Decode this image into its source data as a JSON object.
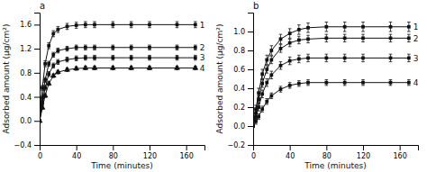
{
  "chart_data": [
    {
      "type": "line",
      "title": "a",
      "x_label": "Time (minutes)",
      "y_label": "Adsorbed amount (μg/cm²)",
      "x": [
        0,
        3,
        6,
        10,
        15,
        20,
        30,
        40,
        50,
        60,
        80,
        100,
        120,
        150,
        170
      ],
      "xlim": [
        0,
        180
      ],
      "xticks": [
        0,
        40,
        80,
        120,
        160
      ],
      "ylim": [
        -0.4,
        1.8
      ],
      "yticks": [
        {
          "value": -0.4,
          "label": "−0.4"
        },
        {
          "value": 0.0,
          "label": "0.0"
        },
        0.4,
        0.8,
        1.2,
        1.6
      ],
      "series": [
        {
          "name": "1",
          "color": "#111111",
          "marker": "square",
          "values": [
            0.0,
            0.55,
            0.95,
            1.25,
            1.45,
            1.52,
            1.57,
            1.59,
            1.6,
            1.6,
            1.6,
            1.6,
            1.6,
            1.6,
            1.6
          ],
          "errors": [
            0.01,
            0.04,
            0.05,
            0.05,
            0.05,
            0.05,
            0.05,
            0.05,
            0.05,
            0.05,
            0.05,
            0.05,
            0.05,
            0.05,
            0.05
          ]
        },
        {
          "name": "2",
          "color": "#111111",
          "marker": "square",
          "values": [
            0.0,
            0.38,
            0.68,
            0.95,
            1.1,
            1.17,
            1.2,
            1.22,
            1.22,
            1.22,
            1.22,
            1.22,
            1.22,
            1.22,
            1.22
          ],
          "errors": [
            0.01,
            0.04,
            0.04,
            0.04,
            0.04,
            0.04,
            0.04,
            0.04,
            0.04,
            0.04,
            0.04,
            0.04,
            0.04,
            0.04,
            0.04
          ]
        },
        {
          "name": "3",
          "color": "#111111",
          "marker": "square",
          "values": [
            0.0,
            0.3,
            0.55,
            0.78,
            0.92,
            0.98,
            1.02,
            1.04,
            1.05,
            1.05,
            1.05,
            1.05,
            1.05,
            1.05,
            1.05
          ],
          "errors": [
            0.01,
            0.03,
            0.04,
            0.04,
            0.04,
            0.04,
            0.04,
            0.04,
            0.04,
            0.04,
            0.04,
            0.04,
            0.04,
            0.04,
            0.04
          ]
        },
        {
          "name": "4",
          "color": "#111111",
          "marker": "triangle",
          "values": [
            0.0,
            0.22,
            0.42,
            0.62,
            0.75,
            0.81,
            0.85,
            0.87,
            0.88,
            0.88,
            0.88,
            0.88,
            0.88,
            0.88,
            0.88
          ],
          "errors": [
            0.01,
            0.03,
            0.03,
            0.03,
            0.03,
            0.03,
            0.03,
            0.03,
            0.03,
            0.03,
            0.03,
            0.03,
            0.03,
            0.03,
            0.03
          ]
        }
      ]
    },
    {
      "type": "line",
      "title": "b",
      "x_label": "Time (minutes)",
      "y_label": "Adsor­bed amount (μg/cm²)",
      "x": [
        0,
        3,
        6,
        10,
        15,
        20,
        30,
        40,
        50,
        60,
        80,
        100,
        120,
        150,
        170
      ],
      "xlim": [
        0,
        180
      ],
      "xticks": [
        0,
        40,
        80,
        120,
        160
      ],
      "ylim": [
        -0.2,
        1.2
      ],
      "yticks": [
        {
          "value": -0.2,
          "label": "−0.2"
        },
        {
          "value": 0.0,
          "label": "0.0"
        },
        0.2,
        0.4,
        0.6,
        0.8,
        {
          "value": 1.0,
          "label": "1.0"
        }
      ],
      "series": [
        {
          "name": "1",
          "color": "#111111",
          "marker": "square",
          "values": [
            0.0,
            0.18,
            0.35,
            0.55,
            0.7,
            0.8,
            0.92,
            0.98,
            1.02,
            1.04,
            1.05,
            1.05,
            1.05,
            1.05,
            1.05
          ],
          "errors": [
            0.01,
            0.04,
            0.05,
            0.05,
            0.05,
            0.05,
            0.05,
            0.05,
            0.05,
            0.05,
            0.05,
            0.05,
            0.05,
            0.05,
            0.05
          ]
        },
        {
          "name": "2",
          "color": "#111111",
          "marker": "square",
          "values": [
            0.0,
            0.14,
            0.28,
            0.45,
            0.6,
            0.7,
            0.82,
            0.88,
            0.91,
            0.92,
            0.93,
            0.93,
            0.93,
            0.93,
            0.93
          ],
          "errors": [
            0.01,
            0.04,
            0.04,
            0.04,
            0.04,
            0.04,
            0.04,
            0.04,
            0.04,
            0.04,
            0.04,
            0.04,
            0.04,
            0.04,
            0.04
          ]
        },
        {
          "name": "3",
          "color": "#111111",
          "marker": "square",
          "values": [
            0.0,
            0.1,
            0.2,
            0.34,
            0.46,
            0.54,
            0.64,
            0.69,
            0.71,
            0.72,
            0.72,
            0.72,
            0.72,
            0.72,
            0.72
          ],
          "errors": [
            0.01,
            0.03,
            0.04,
            0.04,
            0.04,
            0.04,
            0.04,
            0.04,
            0.04,
            0.04,
            0.04,
            0.04,
            0.04,
            0.04,
            0.04
          ]
        },
        {
          "name": "4",
          "color": "#111111",
          "marker": "square",
          "values": [
            0.0,
            0.05,
            0.1,
            0.18,
            0.26,
            0.32,
            0.39,
            0.43,
            0.45,
            0.46,
            0.46,
            0.46,
            0.46,
            0.46,
            0.46
          ],
          "errors": [
            0.01,
            0.03,
            0.03,
            0.03,
            0.03,
            0.03,
            0.03,
            0.03,
            0.03,
            0.03,
            0.03,
            0.03,
            0.03,
            0.03,
            0.03
          ]
        }
      ]
    }
  ]
}
